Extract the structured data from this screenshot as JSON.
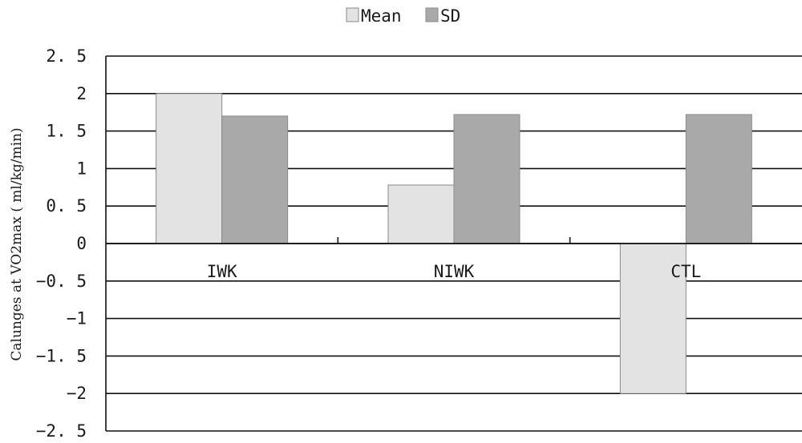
{
  "chart_data": {
    "type": "bar",
    "categories": [
      "IWK",
      "NIWK",
      "CTL"
    ],
    "series": [
      {
        "name": "Mean",
        "values": [
          2.0,
          0.78,
          -2.0
        ],
        "color": "#e3e3e3"
      },
      {
        "name": "SD",
        "values": [
          1.7,
          1.72,
          1.72
        ],
        "color": "#a9a9a9"
      }
    ],
    "title": "",
    "xlabel": "",
    "ylabel": "Calunges at VO2max ( ml/kg/min)",
    "ylim": [
      -2.5,
      2.5
    ],
    "yticks": [
      2.5,
      2,
      1.5,
      1,
      0.5,
      0,
      -0.5,
      -1,
      -1.5,
      -2,
      -2.5
    ],
    "ytick_labels": [
      "2. 5",
      "2",
      "1. 5",
      "1",
      "0. 5",
      "0",
      "−0. 5",
      "−1",
      "−1. 5",
      "−2",
      "−2. 5"
    ],
    "grid": true,
    "legend_position": "top-center"
  }
}
